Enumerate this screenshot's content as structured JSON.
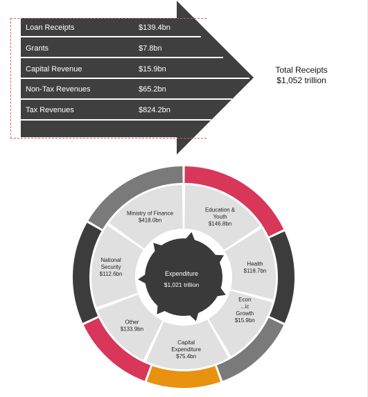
{
  "receipts": {
    "rows": [
      {
        "label": "Loan Receipts",
        "value": "$139.4bn"
      },
      {
        "label": "Grants",
        "value": "$7.8bn"
      },
      {
        "label": "Capital Revenue",
        "value": "$15.9bn"
      },
      {
        "label": "Non-Tax Revenues",
        "value": "$65.2bn"
      },
      {
        "label": "Tax Revenues",
        "value": "$824.2bn"
      }
    ],
    "total_line1": "Total Receipts",
    "total_line2": "$1,052 trillion"
  },
  "expenditure": {
    "center_title": "Expenditure",
    "center_value": "$1,021 trillion",
    "segments": [
      {
        "lines": [
          "Education &",
          "Youth",
          "$146.8bn"
        ]
      },
      {
        "lines": [
          "Health",
          "$118.7bn"
        ]
      },
      {
        "lines": [
          "Econ",
          "...ic",
          "Growth",
          "$15.9bn"
        ]
      },
      {
        "lines": [
          "Capital",
          "Expenditure",
          "$75.4bn"
        ]
      },
      {
        "lines": [
          "Other",
          "$133.9bn"
        ]
      },
      {
        "lines": [
          "National",
          "Security",
          "$112.6bn"
        ]
      },
      {
        "lines": [
          "Ministry of Finance",
          "$418.0bn"
        ]
      }
    ]
  },
  "colors": {
    "arrow": "#3f3f3f",
    "hub": "#3a3a3a",
    "segment_fill": "#e0e0e0",
    "inner_ring": "#ffffff",
    "outer_red": "#d8375a",
    "outer_dark": "#3c3c3c",
    "outer_gray": "#7a7a7a",
    "outer_orange": "#e8920f"
  }
}
